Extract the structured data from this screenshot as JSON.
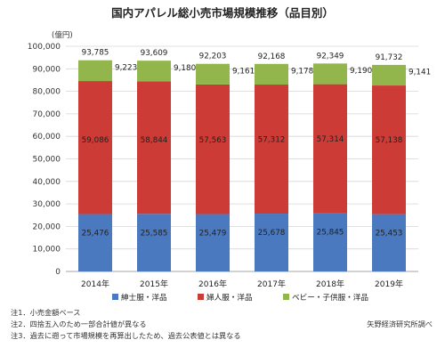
{
  "title": "国内アパレル総小売市場規模推移（品目別）",
  "chart_data": {
    "type": "bar",
    "stacked": true,
    "title": "国内アパレル総小売市場規模推移（品目別）",
    "ylabel": "(億円)",
    "ylim": [
      0,
      100000
    ],
    "yticks": [
      "0",
      "10,000",
      "20,000",
      "30,000",
      "40,000",
      "50,000",
      "60,000",
      "70,000",
      "80,000",
      "90,000",
      "100,000"
    ],
    "categories": [
      "2014年",
      "2015年",
      "2016年",
      "2017年",
      "2018年",
      "2019年"
    ],
    "series": [
      {
        "name": "紳士服・洋品",
        "color": "#4a79c0",
        "values": [
          25476,
          25585,
          25479,
          25678,
          25845,
          25453
        ],
        "labels": [
          "25,476",
          "25,585",
          "25,479",
          "25,678",
          "25,845",
          "25,453"
        ]
      },
      {
        "name": "婦人服・洋品",
        "color": "#cc3b35",
        "values": [
          59086,
          58844,
          57563,
          57312,
          57314,
          57138
        ],
        "labels": [
          "59,086",
          "58,844",
          "57,563",
          "57,312",
          "57,314",
          "57,138"
        ]
      },
      {
        "name": "ベビー・子供服・洋品",
        "color": "#92b64c",
        "values": [
          9223,
          9180,
          9161,
          9178,
          9190,
          9141
        ],
        "labels": [
          "9,223",
          "9,180",
          "9,161",
          "9,178",
          "9,190",
          "9,141"
        ]
      }
    ],
    "totals": [
      93785,
      93609,
      92203,
      92168,
      92349,
      91732
    ],
    "total_labels": [
      "93,785",
      "93,609",
      "92,203",
      "92,168",
      "92,349",
      "91,732"
    ],
    "grid": true,
    "legend_position": "bottom"
  },
  "notes": [
    "注1．小売金額ベース",
    "注2．四捨五入のため一部合計値が異なる",
    "注3．過去に遡って市場規模を再算出したため、過去公表値とは異なる"
  ],
  "source": "矢野経済研究所調べ"
}
